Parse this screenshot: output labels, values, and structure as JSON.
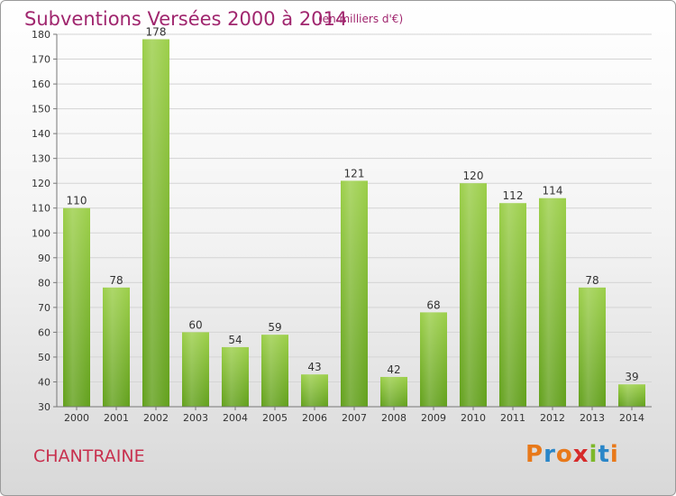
{
  "header": {
    "title": "Subventions Versées 2000 à 2014",
    "subtitle": "(en milliers d'€)"
  },
  "footer": {
    "town": "CHANTRAINE",
    "logo_text": "Proxiti"
  },
  "colors": {
    "title": "#a0266e",
    "town": "#c8304e",
    "bar_top": "#9ccf4a",
    "bar_bottom": "#62a01c"
  },
  "chart_data": {
    "type": "bar",
    "title": "Subventions Versées 2000 à 2014",
    "subtitle": "(en milliers d'€)",
    "xlabel": "",
    "ylabel": "",
    "categories": [
      "2000",
      "2001",
      "2002",
      "2003",
      "2004",
      "2005",
      "2006",
      "2007",
      "2008",
      "2009",
      "2010",
      "2011",
      "2012",
      "2013",
      "2014"
    ],
    "values": [
      110,
      78,
      178,
      60,
      54,
      59,
      43,
      121,
      42,
      68,
      120,
      112,
      114,
      78,
      39
    ],
    "ylim": [
      30,
      180
    ],
    "yticks": [
      30,
      40,
      50,
      60,
      70,
      80,
      90,
      100,
      110,
      120,
      130,
      140,
      150,
      160,
      170,
      180
    ],
    "grid": true,
    "legend": "none"
  }
}
